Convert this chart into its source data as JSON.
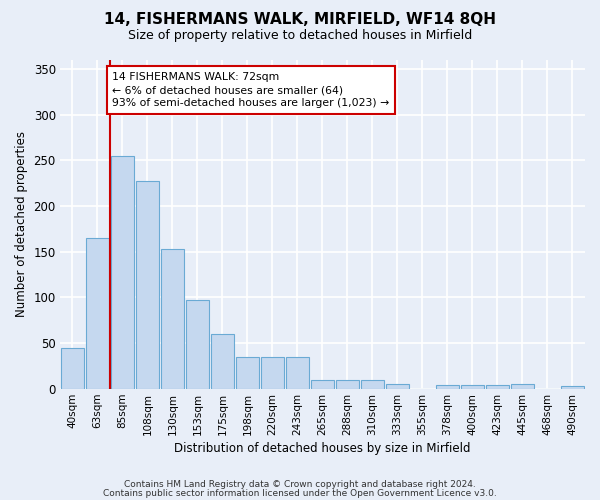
{
  "title1": "14, FISHERMANS WALK, MIRFIELD, WF14 8QH",
  "title2": "Size of property relative to detached houses in Mirfield",
  "xlabel": "Distribution of detached houses by size in Mirfield",
  "ylabel": "Number of detached properties",
  "categories": [
    "40sqm",
    "63sqm",
    "85sqm",
    "108sqm",
    "130sqm",
    "153sqm",
    "175sqm",
    "198sqm",
    "220sqm",
    "243sqm",
    "265sqm",
    "288sqm",
    "310sqm",
    "333sqm",
    "355sqm",
    "378sqm",
    "400sqm",
    "423sqm",
    "445sqm",
    "468sqm",
    "490sqm"
  ],
  "values": [
    45,
    165,
    255,
    228,
    153,
    97,
    60,
    35,
    35,
    35,
    10,
    10,
    10,
    5,
    0,
    4,
    4,
    4,
    5,
    0,
    3
  ],
  "bar_color": "#c5d8ef",
  "bar_edge_color": "#6aaad4",
  "vline_color": "#cc0000",
  "vline_x": 1.5,
  "annotation_line1": "14 FISHERMANS WALK: 72sqm",
  "annotation_line2": "← 6% of detached houses are smaller (64)",
  "annotation_line3": "93% of semi-detached houses are larger (1,023) →",
  "annotation_box_edgecolor": "#cc0000",
  "ylim": [
    0,
    360
  ],
  "yticks": [
    0,
    50,
    100,
    150,
    200,
    250,
    300,
    350
  ],
  "footer1": "Contains HM Land Registry data © Crown copyright and database right 2024.",
  "footer2": "Contains public sector information licensed under the Open Government Licence v3.0.",
  "background_color": "#e8eef8",
  "grid_color": "#c8d4e8",
  "plot_bg_color": "#e8eef8"
}
